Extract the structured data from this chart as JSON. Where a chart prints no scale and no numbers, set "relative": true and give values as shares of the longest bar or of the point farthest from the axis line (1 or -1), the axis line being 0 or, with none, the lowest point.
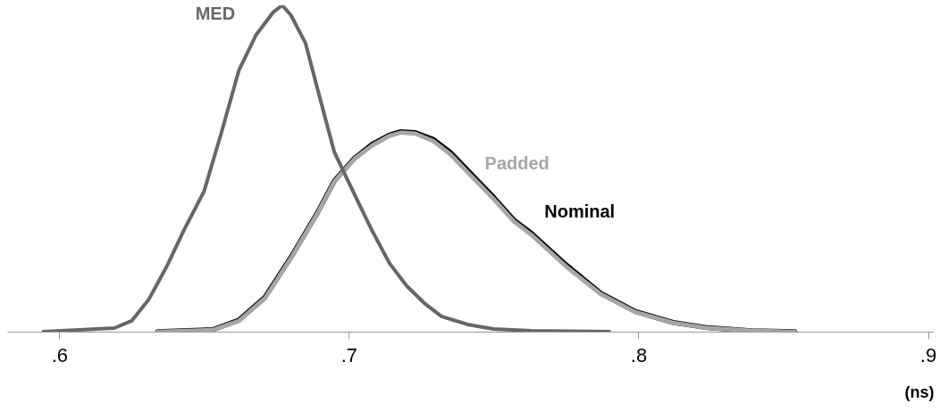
{
  "chart_data": {
    "type": "line",
    "relative": true,
    "xlabel": "(ns)",
    "xlim": [
      0.582,
      0.902
    ],
    "xticks": [
      {
        "value": 0.6,
        "label": ".6"
      },
      {
        "value": 0.7,
        "label": ".7"
      },
      {
        "value": 0.8,
        "label": ".8"
      },
      {
        "value": 0.9,
        "label": ".9"
      }
    ],
    "grid": false,
    "legend": false,
    "line_style": "solid",
    "marker": "none",
    "series": [
      {
        "name": "MED",
        "color": "#666666",
        "x": [
          0.5945,
          0.619,
          0.625,
          0.631,
          0.637,
          0.643,
          0.65,
          0.656,
          0.662,
          0.668,
          0.674,
          0.677,
          0.68,
          0.685,
          0.689,
          0.695,
          0.702,
          0.708,
          0.714,
          0.72,
          0.726,
          0.732,
          0.741,
          0.75,
          0.763,
          0.79
        ],
        "values": [
          0,
          0.011,
          0.033,
          0.1,
          0.198,
          0.31,
          0.43,
          0.61,
          0.8,
          0.91,
          0.98,
          1,
          0.97,
          0.885,
          0.75,
          0.55,
          0.42,
          0.31,
          0.21,
          0.14,
          0.088,
          0.047,
          0.022,
          0.008,
          0.003,
          0
        ]
      },
      {
        "name": "Padded",
        "color": "#a6a6a6",
        "x": [
          0.634,
          0.653,
          0.662,
          0.671,
          0.68,
          0.689,
          0.695,
          0.702,
          0.708,
          0.714,
          0.718,
          0.723,
          0.729,
          0.735,
          0.741,
          0.75,
          0.757,
          0.763,
          0.775,
          0.787,
          0.799,
          0.812,
          0.824,
          0.839,
          0.854
        ],
        "values": [
          0,
          0.005,
          0.033,
          0.102,
          0.225,
          0.36,
          0.46,
          0.53,
          0.57,
          0.6,
          0.61,
          0.607,
          0.585,
          0.544,
          0.489,
          0.407,
          0.338,
          0.297,
          0.2,
          0.115,
          0.06,
          0.027,
          0.011,
          0.003,
          0
        ]
      },
      {
        "name": "Nominal",
        "color": "#000000",
        "x": [
          0.634,
          0.653,
          0.662,
          0.671,
          0.68,
          0.689,
          0.695,
          0.702,
          0.708,
          0.714,
          0.718,
          0.723,
          0.729,
          0.735,
          0.741,
          0.75,
          0.757,
          0.763,
          0.775,
          0.787,
          0.799,
          0.812,
          0.824,
          0.839,
          0.854
        ],
        "values": [
          0,
          0.006,
          0.035,
          0.105,
          0.228,
          0.362,
          0.462,
          0.532,
          0.574,
          0.603,
          0.613,
          0.61,
          0.59,
          0.55,
          0.495,
          0.412,
          0.342,
          0.302,
          0.205,
          0.118,
          0.062,
          0.028,
          0.012,
          0.003,
          0
        ]
      }
    ]
  }
}
